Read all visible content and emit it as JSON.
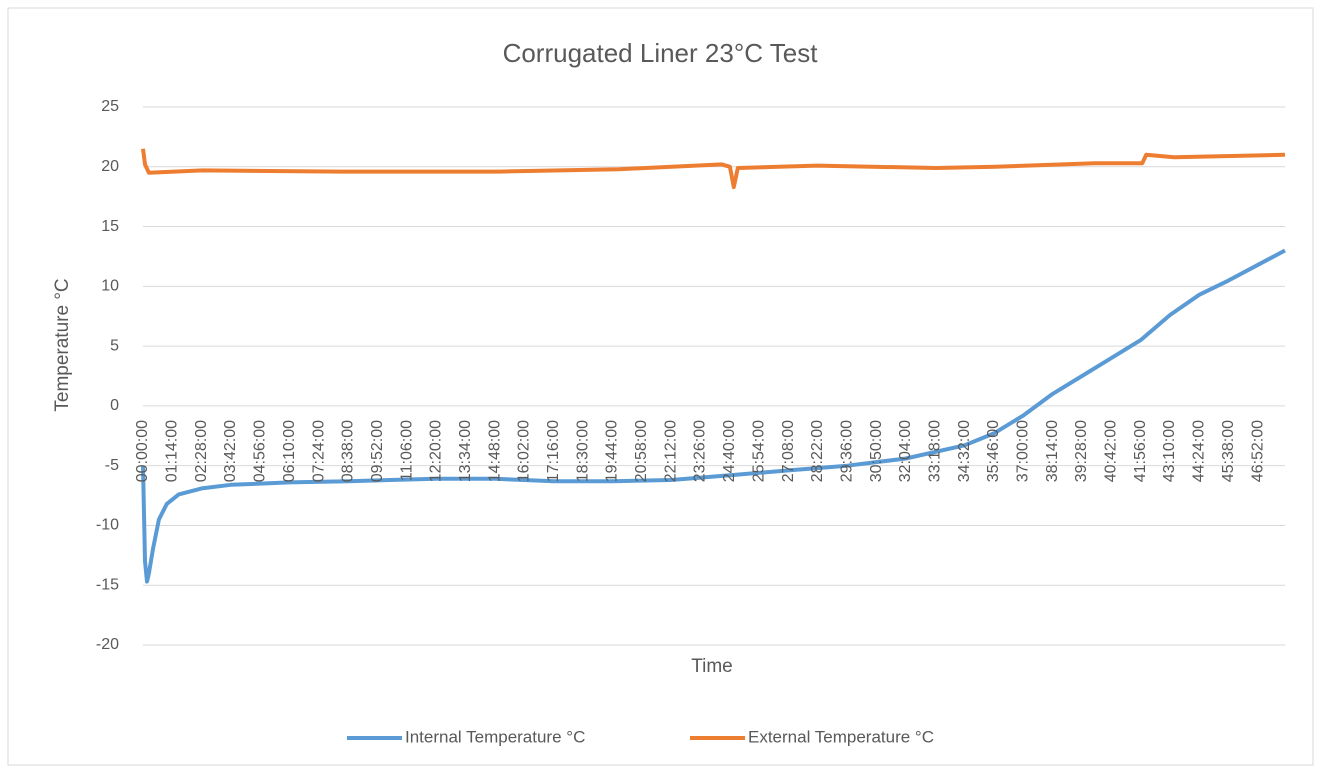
{
  "chart_data": {
    "type": "line",
    "title": "Corrugated Liner 23°C Test",
    "xlabel": "Time",
    "ylabel": "Temperature °C",
    "xlim": [
      0,
      2880
    ],
    "ylim": [
      -20,
      25
    ],
    "yticks": [
      -20,
      -15,
      -10,
      -5,
      0,
      5,
      10,
      15,
      20,
      25
    ],
    "grid": true,
    "legend": "bottom",
    "xticks": [
      {
        "value": 0,
        "label": "00:00:00"
      },
      {
        "value": 74,
        "label": "01:14:00"
      },
      {
        "value": 148,
        "label": "02:28:00"
      },
      {
        "value": 222,
        "label": "03:42:00"
      },
      {
        "value": 296,
        "label": "04:56:00"
      },
      {
        "value": 370,
        "label": "06:10:00"
      },
      {
        "value": 444,
        "label": "07:24:00"
      },
      {
        "value": 518,
        "label": "08:38:00"
      },
      {
        "value": 592,
        "label": "09:52:00"
      },
      {
        "value": 666,
        "label": "11:06:00"
      },
      {
        "value": 740,
        "label": "12:20:00"
      },
      {
        "value": 814,
        "label": "13:34:00"
      },
      {
        "value": 888,
        "label": "14:48:00"
      },
      {
        "value": 962,
        "label": "16:02:00"
      },
      {
        "value": 1036,
        "label": "17:16:00"
      },
      {
        "value": 1110,
        "label": "18:30:00"
      },
      {
        "value": 1184,
        "label": "19:44:00"
      },
      {
        "value": 1258,
        "label": "20:58:00"
      },
      {
        "value": 1332,
        "label": "22:12:00"
      },
      {
        "value": 1406,
        "label": "23:26:00"
      },
      {
        "value": 1480,
        "label": "24:40:00"
      },
      {
        "value": 1554,
        "label": "25:54:00"
      },
      {
        "value": 1628,
        "label": "27:08:00"
      },
      {
        "value": 1702,
        "label": "28:22:00"
      },
      {
        "value": 1776,
        "label": "29:36:00"
      },
      {
        "value": 1850,
        "label": "30:50:00"
      },
      {
        "value": 1924,
        "label": "32:04:00"
      },
      {
        "value": 1998,
        "label": "33:18:00"
      },
      {
        "value": 2072,
        "label": "34:32:00"
      },
      {
        "value": 2146,
        "label": "35:46:00"
      },
      {
        "value": 2220,
        "label": "37:00:00"
      },
      {
        "value": 2294,
        "label": "38:14:00"
      },
      {
        "value": 2368,
        "label": "39:28:00"
      },
      {
        "value": 2442,
        "label": "40:42:00"
      },
      {
        "value": 2516,
        "label": "41:56:00"
      },
      {
        "value": 2590,
        "label": "43:10:00"
      },
      {
        "value": 2664,
        "label": "44:24:00"
      },
      {
        "value": 2738,
        "label": "45:38:00"
      },
      {
        "value": 2812,
        "label": "46:52:00"
      }
    ],
    "series": [
      {
        "name": "Internal Temperature °C",
        "color": "#5b9bd5",
        "x": [
          0,
          5,
          10,
          15,
          25,
          40,
          60,
          90,
          148,
          222,
          370,
          518,
          740,
          888,
          1036,
          1184,
          1332,
          1480,
          1628,
          1776,
          1924,
          2072,
          2146,
          2220,
          2294,
          2368,
          2442,
          2516,
          2590,
          2664,
          2738,
          2812,
          2880
        ],
        "values": [
          -5,
          -13,
          -14.7,
          -14,
          -12,
          -9.5,
          -8.2,
          -7.4,
          -6.9,
          -6.6,
          -6.4,
          -6.3,
          -6.1,
          -6.1,
          -6.3,
          -6.3,
          -6.2,
          -5.8,
          -5.4,
          -5.0,
          -4.4,
          -3.3,
          -2.3,
          -0.8,
          1.0,
          2.5,
          4.0,
          5.5,
          7.6,
          9.3,
          10.5,
          11.8,
          13
        ]
      },
      {
        "name": "External Temperature °C",
        "color": "#ed7d31",
        "x": [
          0,
          5,
          15,
          150,
          500,
          900,
          1200,
          1460,
          1480,
          1490,
          1500,
          1700,
          2000,
          2150,
          2400,
          2520,
          2530,
          2600,
          2880
        ],
        "values": [
          21.5,
          20.2,
          19.5,
          19.7,
          19.6,
          19.6,
          19.8,
          20.2,
          20.0,
          18.3,
          19.9,
          20.1,
          19.9,
          20.0,
          20.3,
          20.3,
          21.0,
          20.8,
          21.0
        ]
      }
    ]
  }
}
